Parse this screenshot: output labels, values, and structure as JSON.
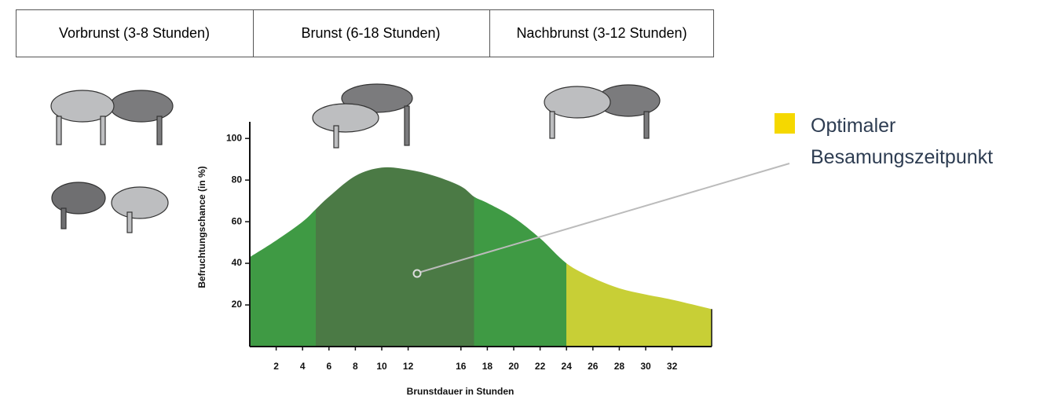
{
  "chart_data": {
    "type": "area",
    "phases": [
      "Vorbrunst (3-8 Stunden)",
      "Brunst (6-18 Stunden)",
      "Nachbrunst (3-12 Stunden)"
    ],
    "x": [
      0,
      2,
      4,
      5,
      6,
      8,
      10,
      12,
      14,
      16,
      17,
      18,
      20,
      22,
      24,
      26,
      28,
      30,
      32,
      35
    ],
    "values": [
      43,
      51,
      60,
      66,
      72,
      82,
      86,
      85,
      82,
      77,
      72,
      69,
      62,
      52,
      40,
      33,
      28,
      25,
      22.5,
      18
    ],
    "bands": [
      {
        "from": 0,
        "to": 5,
        "color": "#3f9a44"
      },
      {
        "from": 5,
        "to": 17,
        "color": "#4b7a45"
      },
      {
        "from": 17,
        "to": 24,
        "color": "#3f9a44"
      },
      {
        "from": 24,
        "to": 35,
        "color": "#c8cf36"
      }
    ],
    "xlim": [
      0,
      35
    ],
    "ylim": [
      0,
      108
    ],
    "xticks": [
      2,
      4,
      6,
      8,
      10,
      12,
      16,
      18,
      20,
      22,
      24,
      26,
      28,
      30,
      32
    ],
    "yticks": [
      20,
      40,
      60,
      80,
      100
    ],
    "xlabel": "Brunstdauer in Stunden",
    "ylabel": "Befruchtungschance (in %)",
    "legend": {
      "label": "Optimaler Besamungszeitpunkt",
      "color": "#f5d800"
    }
  }
}
